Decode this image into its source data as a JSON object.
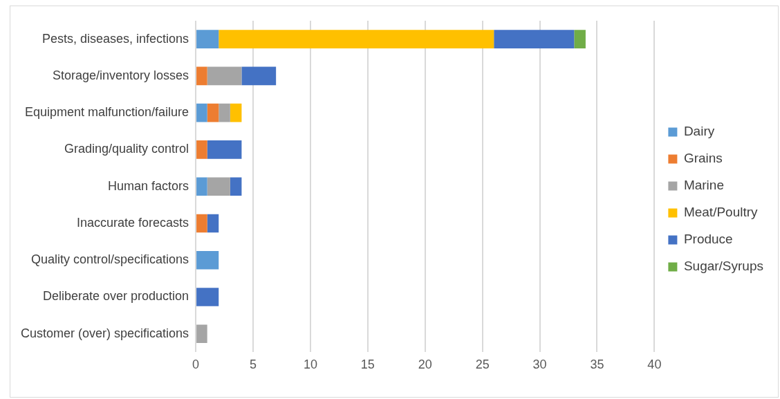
{
  "chart_data": {
    "type": "bar",
    "orientation": "horizontal",
    "stacked": true,
    "categories": [
      "Pests, diseases, infections",
      "Storage/inventory losses",
      "Equipment malfunction/failure",
      "Grading/quality control",
      "Human factors",
      "Inaccurate forecasts",
      "Quality control/specifications",
      "Deliberate over production",
      "Customer (over) specifications"
    ],
    "series": [
      {
        "name": "Dairy",
        "color": "#5b9bd5",
        "values": [
          2,
          null,
          1,
          null,
          1,
          null,
          2,
          null,
          null
        ]
      },
      {
        "name": "Grains",
        "color": "#ed7d31",
        "values": [
          null,
          1,
          1,
          1,
          null,
          1,
          null,
          null,
          null
        ]
      },
      {
        "name": "Marine",
        "color": "#a5a5a5",
        "values": [
          null,
          3,
          1,
          null,
          2,
          null,
          null,
          null,
          1
        ]
      },
      {
        "name": "Meat/Poultry",
        "color": "#ffc000",
        "values": [
          24,
          null,
          1,
          null,
          null,
          null,
          null,
          null,
          null
        ]
      },
      {
        "name": "Produce",
        "color": "#4472c4",
        "values": [
          7,
          3,
          null,
          3,
          1,
          1,
          null,
          2,
          null
        ]
      },
      {
        "name": "Sugar/Syrups",
        "color": "#70ad47",
        "values": [
          1,
          null,
          null,
          null,
          null,
          null,
          null,
          null,
          null
        ]
      }
    ],
    "xlim": [
      0,
      40
    ],
    "xticks": [
      0,
      5,
      10,
      15,
      20,
      25,
      30,
      35,
      40
    ],
    "grid": "x",
    "legend": "right"
  }
}
